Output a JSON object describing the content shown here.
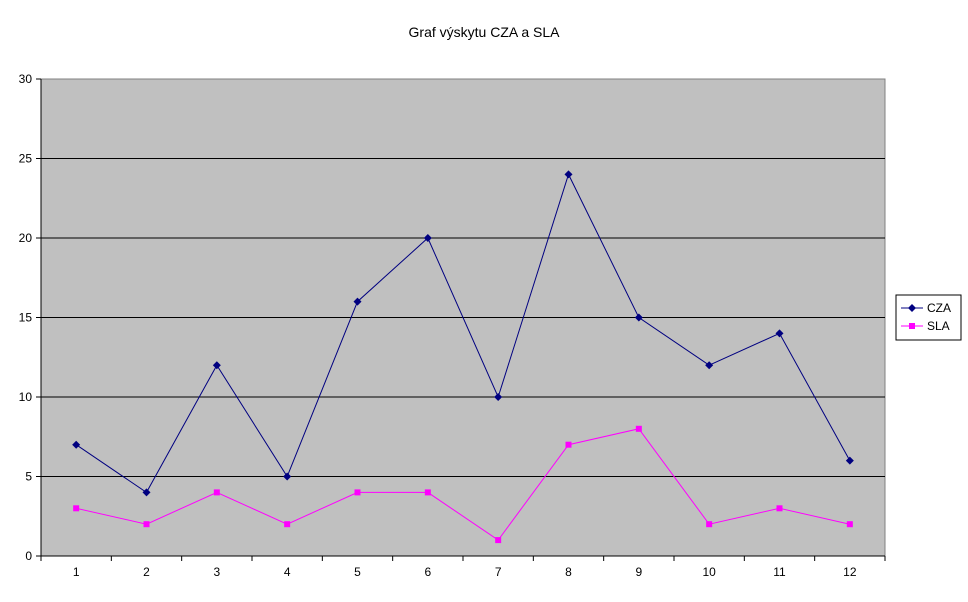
{
  "chart_data": {
    "type": "line",
    "title": "Graf výskytu CZA a SLA",
    "xlabel": "",
    "ylabel": "",
    "categories": [
      "1",
      "2",
      "3",
      "4",
      "5",
      "6",
      "7",
      "8",
      "9",
      "10",
      "11",
      "12"
    ],
    "series": [
      {
        "name": "CZA",
        "values": [
          7,
          4,
          12,
          5,
          16,
          20,
          10,
          24,
          15,
          12,
          14,
          6
        ],
        "color": "#000080",
        "marker": "diamond"
      },
      {
        "name": "SLA",
        "values": [
          3,
          2,
          4,
          2,
          4,
          4,
          1,
          7,
          8,
          2,
          3,
          2
        ],
        "color": "#FF00FF",
        "marker": "square"
      }
    ],
    "ylim": [
      0,
      30
    ],
    "yticks": [
      0,
      5,
      10,
      15,
      20,
      25,
      30
    ],
    "grid": true,
    "plot_background": "#C0C0C0",
    "legend_position": "right"
  }
}
